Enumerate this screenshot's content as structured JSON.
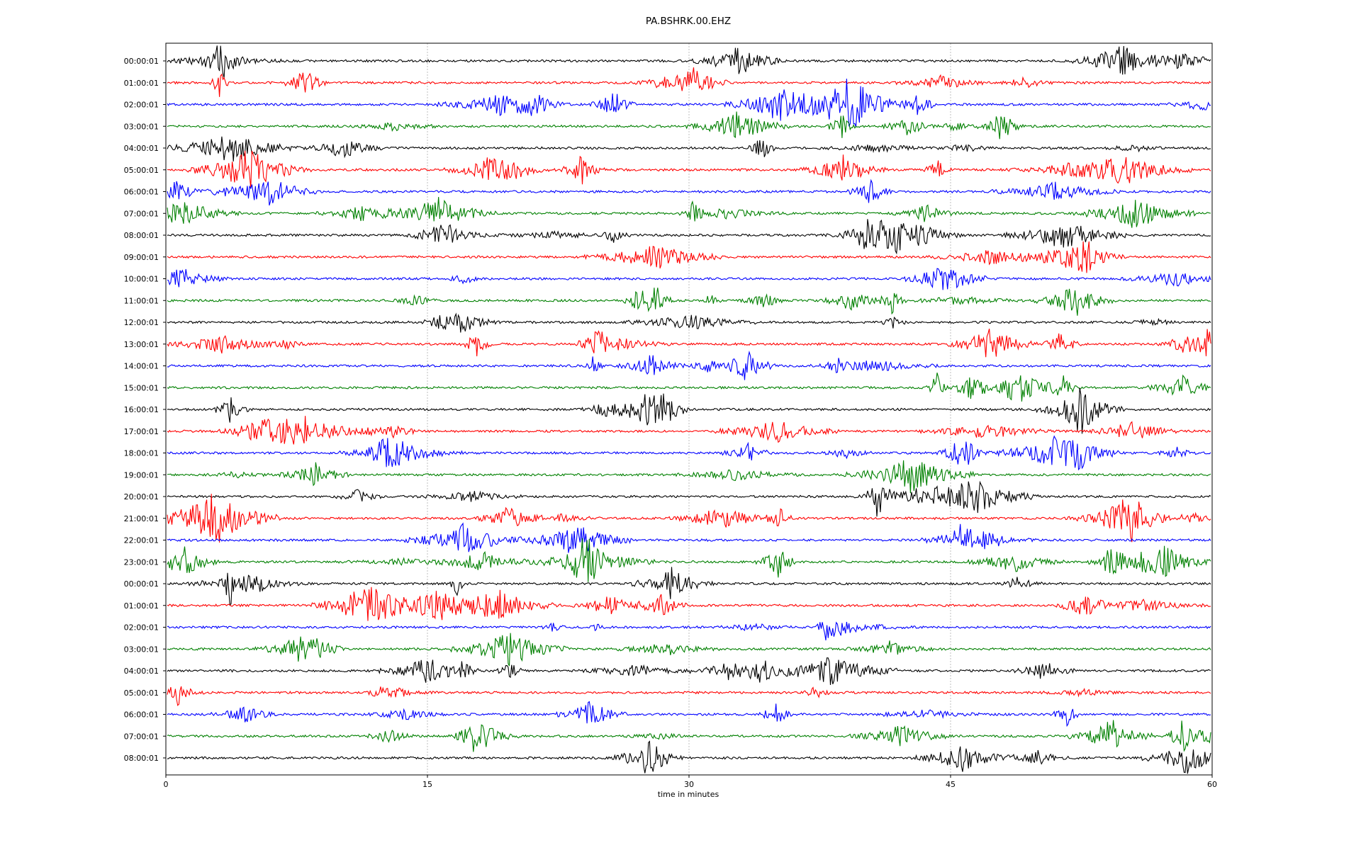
{
  "chart_data": {
    "type": "line",
    "title": "PA.BSHRK.00.EHZ",
    "xlabel": "time in minutes",
    "ylabel": "",
    "xlim": [
      0,
      60
    ],
    "x_ticks": [
      "0",
      "15",
      "30",
      "45",
      "60"
    ],
    "grid": "vertical",
    "legend": "none",
    "trace_colors": [
      "#000000",
      "#ff0000",
      "#0000ff",
      "#008000"
    ],
    "row_labels": [
      "00:00:01",
      "01:00:01",
      "02:00:01",
      "03:00:01",
      "04:00:01",
      "05:00:01",
      "06:00:01",
      "07:00:01",
      "08:00:01",
      "09:00:01",
      "10:00:01",
      "11:00:01",
      "12:00:01",
      "13:00:01",
      "14:00:01",
      "15:00:01",
      "16:00:01",
      "17:00:01",
      "18:00:01",
      "19:00:01",
      "20:00:01",
      "21:00:01",
      "22:00:01",
      "23:00:01",
      "00:00:01",
      "01:00:01",
      "02:00:01",
      "03:00:01",
      "04:00:01",
      "05:00:01",
      "06:00:01",
      "07:00:01",
      "08:00:01"
    ]
  }
}
